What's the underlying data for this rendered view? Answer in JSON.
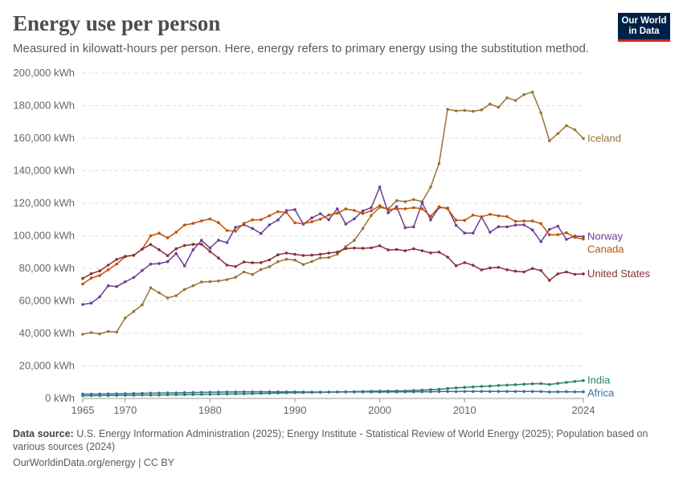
{
  "header": {
    "title": "Energy use per person",
    "subtitle": "Measured in kilowatt-hours per person. Here, energy refers to primary energy using the substitution method."
  },
  "logo": {
    "line1": "Our World",
    "line2": "in Data",
    "bg_color": "#002147",
    "accent_color": "#ce261e"
  },
  "footer": {
    "source_label": "Data source:",
    "source_text": "U.S. Energy Information Administration (2025); Energy Institute - Statistical Review of World Energy (2025); Population based on various sources (2024)",
    "credit": "OurWorldinData.org/energy | CC BY"
  },
  "chart_data": {
    "type": "line",
    "title": "Energy use per person",
    "xlabel": "",
    "ylabel": "kWh",
    "xlim": [
      1965,
      2024
    ],
    "ylim": [
      0,
      200000
    ],
    "y_ticks": [
      0,
      20000,
      40000,
      60000,
      80000,
      100000,
      120000,
      140000,
      160000,
      180000,
      200000
    ],
    "y_tick_labels": [
      "0 kWh",
      "20,000 kWh",
      "40,000 kWh",
      "60,000 kWh",
      "80,000 kWh",
      "100,000 kWh",
      "120,000 kWh",
      "140,000 kWh",
      "160,000 kWh",
      "180,000 kWh",
      "200,000 kWh"
    ],
    "x_ticks": [
      1965,
      1970,
      1980,
      1990,
      2000,
      2010,
      2024
    ],
    "x_tick_labels": [
      "1965",
      "1970",
      "1980",
      "1990",
      "2000",
      "2010",
      "2024"
    ],
    "grid": true,
    "x": [
      1965,
      1966,
      1967,
      1968,
      1969,
      1970,
      1971,
      1972,
      1973,
      1974,
      1975,
      1976,
      1977,
      1978,
      1979,
      1980,
      1981,
      1982,
      1983,
      1984,
      1985,
      1986,
      1987,
      1988,
      1989,
      1990,
      1991,
      1992,
      1993,
      1994,
      1995,
      1996,
      1997,
      1998,
      1999,
      2000,
      2001,
      2002,
      2003,
      2004,
      2005,
      2006,
      2007,
      2008,
      2009,
      2010,
      2011,
      2012,
      2013,
      2014,
      2015,
      2016,
      2017,
      2018,
      2019,
      2020,
      2021,
      2022,
      2023,
      2024
    ],
    "series": [
      {
        "name": "Iceland",
        "label": "Iceland",
        "color": "#9a7337",
        "values": [
          39500,
          40500,
          39700,
          41200,
          40800,
          49500,
          53500,
          57500,
          68000,
          65000,
          61800,
          63200,
          67000,
          69300,
          71600,
          71800,
          72200,
          73100,
          74500,
          77800,
          76200,
          79200,
          81000,
          84100,
          85600,
          85100,
          82300,
          84200,
          86400,
          86600,
          88700,
          93300,
          97200,
          104500,
          112500,
          117500,
          116500,
          121600,
          121000,
          122300,
          121000,
          130000,
          144500,
          177800,
          176800,
          177100,
          176500,
          177400,
          181000,
          179000,
          184800,
          183200,
          186800,
          188300,
          175600,
          158400,
          162800,
          167700,
          165200,
          159800
        ]
      },
      {
        "name": "Norway",
        "label": "Norway",
        "color": "#6d3e91",
        "values": [
          57800,
          58600,
          62500,
          69300,
          68800,
          71700,
          74300,
          78600,
          82600,
          82900,
          84100,
          89100,
          81500,
          91400,
          97200,
          92500,
          97300,
          95800,
          105200,
          106800,
          104500,
          101400,
          106700,
          109700,
          115500,
          116100,
          107100,
          111000,
          113600,
          109900,
          116600,
          107200,
          110400,
          115300,
          117300,
          130000,
          114100,
          117900,
          105000,
          105500,
          120300,
          109800,
          117400,
          117000,
          106400,
          101700,
          101700,
          111500,
          102200,
          105600,
          105500,
          106600,
          106700,
          103600,
          96400,
          103900,
          105900,
          97800,
          99800,
          99500
        ]
      },
      {
        "name": "Canada",
        "label": "Canada",
        "color": "#c15106",
        "values": [
          70300,
          74000,
          75600,
          79100,
          82600,
          87200,
          88000,
          91800,
          100000,
          101600,
          98700,
          102200,
          106600,
          107600,
          109200,
          110300,
          108100,
          103200,
          102800,
          107600,
          109800,
          109900,
          112300,
          114800,
          114300,
          108000,
          107400,
          108600,
          110200,
          112800,
          113900,
          116500,
          115600,
          113700,
          115300,
          118500,
          116100,
          116600,
          116600,
          117300,
          116600,
          112000,
          117900,
          116600,
          109600,
          109500,
          112700,
          111700,
          113200,
          112300,
          111800,
          108900,
          109100,
          109100,
          107500,
          100600,
          100700,
          101900,
          99000,
          98000
        ]
      },
      {
        "name": "United States",
        "label": "United States",
        "color": "#883039",
        "values": [
          73800,
          76700,
          78400,
          82000,
          85500,
          87400,
          88000,
          91800,
          94600,
          91400,
          87800,
          92000,
          94000,
          94700,
          94800,
          90300,
          86300,
          82000,
          81100,
          83900,
          83400,
          83500,
          85200,
          88300,
          89400,
          88600,
          87900,
          88100,
          88600,
          89400,
          90000,
          92100,
          92500,
          92300,
          92600,
          93900,
          91300,
          91600,
          90800,
          92000,
          90800,
          89500,
          90000,
          86900,
          81600,
          83500,
          81900,
          79000,
          80200,
          80600,
          79100,
          78200,
          77800,
          79900,
          78600,
          72600,
          76600,
          77800,
          76300,
          76600
        ]
      },
      {
        "name": "India",
        "label": "India",
        "color": "#2c8465",
        "values": [
          1700,
          1750,
          1780,
          1830,
          1900,
          1920,
          1980,
          2050,
          2080,
          2120,
          2200,
          2290,
          2350,
          2420,
          2500,
          2520,
          2650,
          2720,
          2800,
          2880,
          2980,
          3100,
          3180,
          3320,
          3460,
          3580,
          3660,
          3720,
          3770,
          3880,
          4020,
          4120,
          4220,
          4320,
          4430,
          4480,
          4540,
          4610,
          4700,
          4950,
          5120,
          5400,
          5700,
          6100,
          6520,
          6810,
          7120,
          7430,
          7600,
          8020,
          8180,
          8420,
          8720,
          8990,
          9150,
          8580,
          9280,
          9900,
          10450,
          11000
        ]
      },
      {
        "name": "Africa",
        "label": "Africa",
        "color": "#3b6ea5",
        "values": [
          2650,
          2700,
          2760,
          2820,
          2880,
          2950,
          3050,
          3150,
          3250,
          3300,
          3400,
          3480,
          3560,
          3650,
          3750,
          3800,
          3920,
          3990,
          4010,
          4030,
          4050,
          4070,
          4090,
          4080,
          4060,
          4050,
          4000,
          3960,
          3940,
          3950,
          3970,
          3990,
          4000,
          3990,
          3980,
          3970,
          3990,
          4010,
          4040,
          4110,
          4160,
          4170,
          4230,
          4290,
          4250,
          4310,
          4290,
          4360,
          4320,
          4360,
          4330,
          4290,
          4290,
          4300,
          4260,
          4000,
          4120,
          4130,
          4050,
          4080
        ]
      }
    ]
  }
}
